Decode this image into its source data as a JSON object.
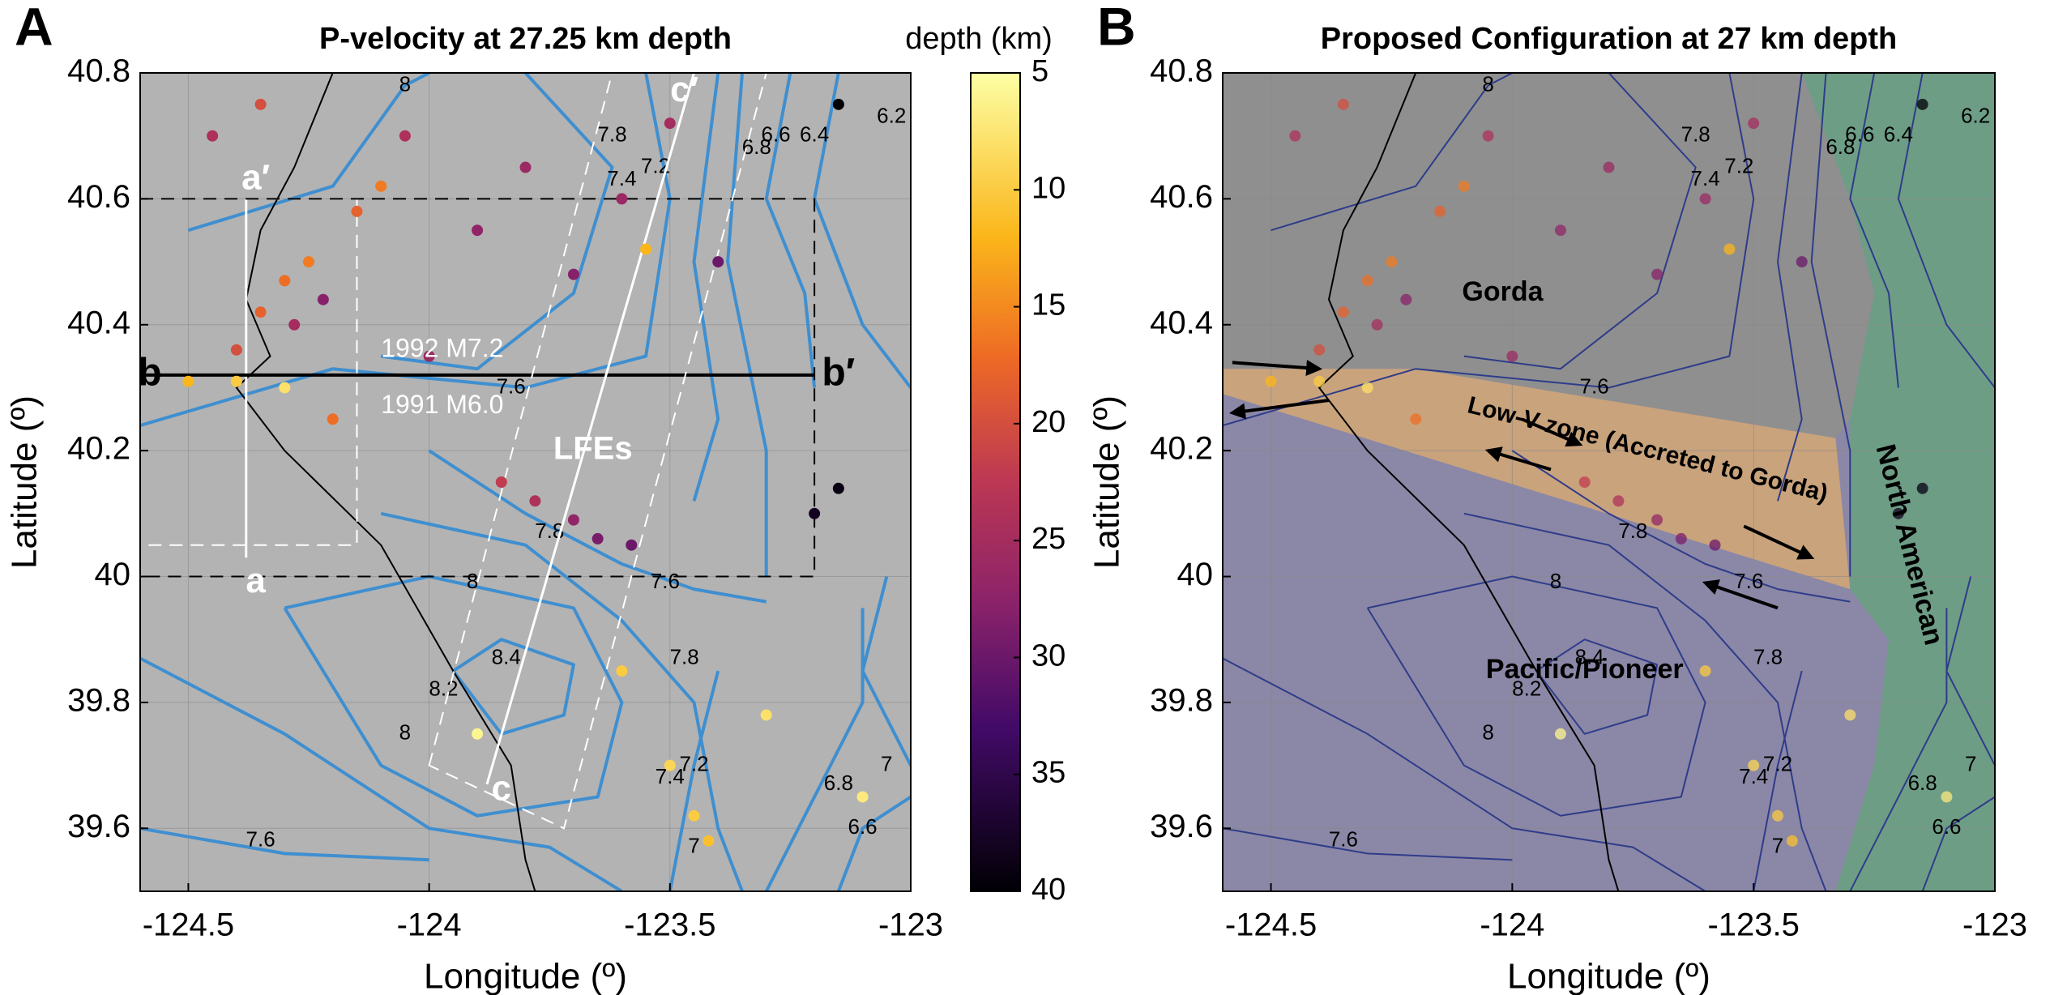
{
  "chart_data": [
    {
      "type": "map",
      "panel_label": "A",
      "title": "P-velocity at 27.25 km depth",
      "xlabel": "Longitude (º)",
      "ylabel": "Latitude (º)",
      "xlim": [
        -124.6,
        -123
      ],
      "ylim": [
        39.5,
        40.8
      ],
      "xticks": [
        -124.5,
        -124,
        -123.5,
        -123
      ],
      "yticks": [
        39.6,
        39.8,
        40,
        40.2,
        40.4,
        40.6,
        40.8
      ],
      "grid": true,
      "background": "#b3b3b3",
      "contour_color": "#3f8fd0",
      "contour_labels": [
        8,
        7.8,
        7.4,
        7.2,
        6.8,
        6.6,
        6.4,
        6.2,
        7.6,
        7.8,
        8,
        8.2,
        8.4,
        7.6,
        7.8,
        7.2,
        7.4,
        7,
        7,
        6.8,
        6.6,
        7.6,
        8
      ],
      "annotations": [
        "a′",
        "a",
        "b",
        "b′",
        "c",
        "c′",
        "LFEs",
        "1992 M7.2",
        "1991 M6.0"
      ],
      "events": {
        "lon": [
          -124.3,
          -124.25,
          -124.35,
          -124.28,
          -124.22,
          -124.4,
          -124.5,
          -124.4,
          -124.3,
          -124.2,
          -124.15,
          -124.1,
          -124.05,
          -123.9,
          -123.8,
          -123.7,
          -123.6,
          -123.5,
          -123.4,
          -123.85,
          -123.78,
          -123.7,
          -123.65,
          -123.58,
          -124.45,
          -124.35,
          -123.55,
          -123.45,
          -123.42,
          -123.5,
          -123.3,
          -123.1,
          -123.6,
          -123.9,
          -123.2,
          -123.15,
          -123.15,
          -124.0
        ],
        "lat": [
          40.47,
          40.5,
          40.42,
          40.4,
          40.44,
          40.36,
          40.31,
          40.31,
          40.3,
          40.25,
          40.58,
          40.62,
          40.7,
          40.55,
          40.65,
          40.48,
          40.6,
          40.72,
          40.5,
          40.15,
          40.12,
          40.09,
          40.06,
          40.05,
          40.7,
          40.75,
          40.52,
          39.62,
          39.58,
          39.7,
          39.78,
          39.65,
          39.85,
          39.75,
          40.1,
          40.75,
          40.14,
          40.35
        ],
        "depth": [
          17,
          16,
          18,
          25,
          28,
          20,
          12,
          10,
          8,
          17,
          18,
          16,
          24,
          27,
          26,
          28,
          26,
          25,
          30,
          22,
          24,
          27,
          29,
          30,
          24,
          20,
          12,
          10,
          11,
          9,
          8,
          7,
          10,
          6,
          38,
          40,
          39,
          26
        ]
      },
      "colorbar": {
        "label": "depth (km)",
        "lim": [
          5,
          40
        ],
        "ticks": [
          5,
          10,
          15,
          20,
          25,
          30,
          35,
          40
        ]
      }
    },
    {
      "type": "map",
      "panel_label": "B",
      "title": "Proposed Configuration at 27 km depth",
      "xlabel": "Longitude (º)",
      "ylabel": "Latitude (º)",
      "xlim": [
        -124.6,
        -123
      ],
      "ylim": [
        39.5,
        40.8
      ],
      "xticks": [
        -124.5,
        -124,
        -123.5,
        -123
      ],
      "yticks": [
        39.6,
        39.8,
        40,
        40.2,
        40.4,
        40.6,
        40.8
      ],
      "grid": true,
      "contour_color": "#2e3c8a",
      "contour_labels": [
        8,
        7.8,
        7.4,
        7.2,
        6.8,
        6.6,
        6.4,
        6.2,
        7.6,
        7.8,
        8,
        8.2,
        8.4,
        7.6,
        7.8,
        7.2,
        7.4,
        7,
        7,
        6.8,
        6.6,
        7.6,
        8
      ],
      "regions": [
        {
          "name": "Pacific/Pioneer",
          "color": "#8b87a6"
        },
        {
          "name": "Gorda",
          "color": "#8f8f8f"
        },
        {
          "name": "Low-V zone (Accreted to Gorda)",
          "color": "#c9a37c"
        },
        {
          "name": "North American",
          "color": "#6e9d86"
        }
      ]
    }
  ]
}
